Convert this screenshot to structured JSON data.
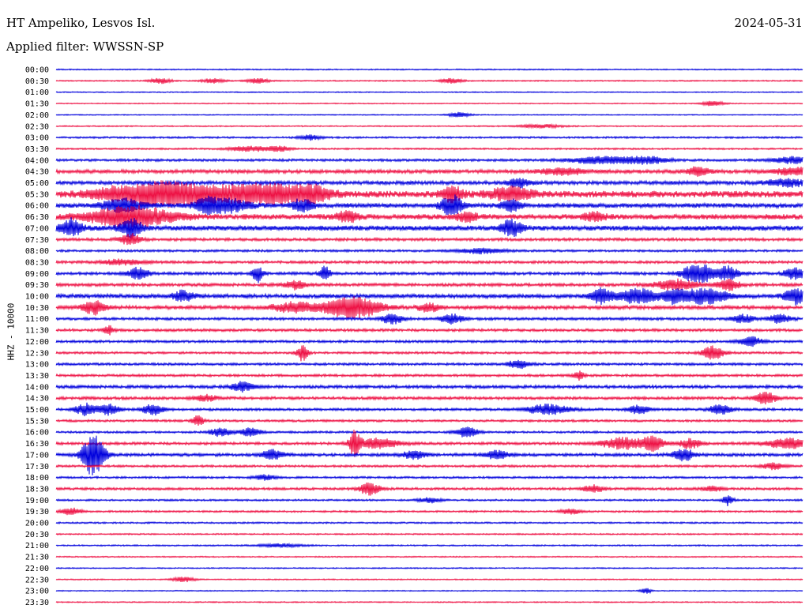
{
  "header": {
    "station": "HT Ampeliko, Lesvos Isl.",
    "date": "2024-05-31",
    "filter": "Applied filter: WWSSN-SP"
  },
  "chart_data": {
    "type": "line",
    "ylabel": "HHZ - 10000",
    "row_labels": [
      "00:00",
      "00:30",
      "01:00",
      "01:30",
      "02:00",
      "02:30",
      "03:00",
      "03:30",
      "04:00",
      "04:30",
      "05:00",
      "05:30",
      "06:00",
      "06:30",
      "07:00",
      "07:30",
      "08:00",
      "08:30",
      "09:00",
      "09:30",
      "10:00",
      "10:30",
      "11:00",
      "11:30",
      "12:00",
      "12:30",
      "13:00",
      "13:30",
      "14:00",
      "14:30",
      "15:00",
      "15:30",
      "16:00",
      "16:30",
      "17:00",
      "17:30",
      "18:00",
      "18:30",
      "19:00",
      "19:30",
      "20:00",
      "20:30",
      "21:00",
      "21:30",
      "22:00",
      "22:30",
      "23:00",
      "23:30"
    ],
    "series_colors": [
      "#0000dd",
      "#ee1144"
    ],
    "noise_levels": [
      0.6,
      0.6,
      0.5,
      0.5,
      0.5,
      0.6,
      0.9,
      0.8,
      1.2,
      1.8,
      1.8,
      3.2,
      2.2,
      2.6,
      2.4,
      1.4,
      1.1,
      1.3,
      1.4,
      1.5,
      2.0,
      1.8,
      1.3,
      1.3,
      1.2,
      1.1,
      1.2,
      1.2,
      1.5,
      1.4,
      1.2,
      1.1,
      1.0,
      1.3,
      1.5,
      1.1,
      1.0,
      1.2,
      0.9,
      0.9,
      0.8,
      0.7,
      0.7,
      0.6,
      0.6,
      0.6,
      0.5,
      0.6
    ],
    "events": [
      [],
      [
        [
          0.14,
          3,
          0.01
        ],
        [
          0.21,
          3,
          0.01
        ],
        [
          0.27,
          3,
          0.01
        ],
        [
          0.53,
          3,
          0.01
        ]
      ],
      [],
      [
        [
          0.88,
          3,
          0.01
        ]
      ],
      [
        [
          0.54,
          3,
          0.01
        ]
      ],
      [
        [
          0.65,
          2,
          0.02
        ]
      ],
      [
        [
          0.34,
          3,
          0.01
        ]
      ],
      [
        [
          0.26,
          3,
          0.02
        ],
        [
          0.3,
          3,
          0.01
        ]
      ],
      [
        [
          0.73,
          4,
          0.03
        ],
        [
          0.79,
          4,
          0.02
        ],
        [
          0.99,
          4,
          0.02
        ]
      ],
      [
        [
          0.68,
          4,
          0.02
        ],
        [
          0.86,
          5,
          0.01
        ],
        [
          0.99,
          4,
          0.02
        ]
      ],
      [
        [
          0.62,
          5,
          0.01
        ],
        [
          0.98,
          4,
          0.02
        ]
      ],
      [
        [
          0.09,
          8,
          0.03
        ],
        [
          0.14,
          12,
          0.02
        ],
        [
          0.18,
          9,
          0.02
        ],
        [
          0.24,
          9,
          0.03
        ],
        [
          0.29,
          9,
          0.02
        ],
        [
          0.34,
          10,
          0.02
        ],
        [
          0.53,
          8,
          0.01
        ],
        [
          0.61,
          7,
          0.02
        ]
      ],
      [
        [
          0.09,
          8,
          0.02
        ],
        [
          0.2,
          8,
          0.01
        ],
        [
          0.23,
          8,
          0.02
        ],
        [
          0.33,
          7,
          0.01
        ],
        [
          0.53,
          12,
          0.01
        ],
        [
          0.61,
          6,
          0.01
        ]
      ],
      [
        [
          0.1,
          12,
          0.04
        ],
        [
          0.39,
          6,
          0.01
        ],
        [
          0.55,
          5,
          0.01
        ],
        [
          0.72,
          5,
          0.01
        ]
      ],
      [
        [
          0.02,
          10,
          0.01
        ],
        [
          0.1,
          12,
          0.01
        ],
        [
          0.61,
          9,
          0.01
        ]
      ],
      [
        [
          0.1,
          6,
          0.01
        ]
      ],
      [
        [
          0.57,
          3,
          0.02
        ]
      ],
      [
        [
          0.09,
          3,
          0.02
        ]
      ],
      [
        [
          0.11,
          7,
          0.01
        ],
        [
          0.27,
          10,
          0.005
        ],
        [
          0.36,
          8,
          0.005
        ],
        [
          0.85,
          8,
          0.01
        ],
        [
          0.87,
          9,
          0.01
        ],
        [
          0.9,
          8,
          0.01
        ],
        [
          0.99,
          7,
          0.01
        ]
      ],
      [
        [
          0.32,
          5,
          0.01
        ],
        [
          0.83,
          6,
          0.02
        ],
        [
          0.9,
          7,
          0.01
        ]
      ],
      [
        [
          0.17,
          6,
          0.01
        ],
        [
          0.73,
          8,
          0.01
        ],
        [
          0.78,
          8,
          0.02
        ],
        [
          0.83,
          8,
          0.01
        ],
        [
          0.87,
          9,
          0.02
        ],
        [
          0.99,
          9,
          0.01
        ]
      ],
      [
        [
          0.05,
          8,
          0.01
        ],
        [
          0.32,
          6,
          0.02
        ],
        [
          0.38,
          8,
          0.02
        ],
        [
          0.41,
          9,
          0.02
        ],
        [
          0.5,
          5,
          0.01
        ]
      ],
      [
        [
          0.45,
          6,
          0.01
        ],
        [
          0.53,
          6,
          0.01
        ],
        [
          0.92,
          5,
          0.01
        ],
        [
          0.97,
          5,
          0.01
        ]
      ],
      [
        [
          0.07,
          5,
          0.005
        ]
      ],
      [
        [
          0.93,
          6,
          0.01
        ]
      ],
      [
        [
          0.33,
          10,
          0.005
        ],
        [
          0.88,
          8,
          0.01
        ]
      ],
      [
        [
          0.62,
          5,
          0.01
        ]
      ],
      [
        [
          0.7,
          5,
          0.005
        ]
      ],
      [
        [
          0.25,
          6,
          0.01
        ]
      ],
      [
        [
          0.2,
          4,
          0.01
        ],
        [
          0.95,
          7,
          0.01
        ]
      ],
      [
        [
          0.04,
          7,
          0.01
        ],
        [
          0.07,
          6,
          0.01
        ],
        [
          0.13,
          6,
          0.01
        ],
        [
          0.66,
          6,
          0.02
        ],
        [
          0.78,
          5,
          0.01
        ],
        [
          0.89,
          6,
          0.01
        ]
      ],
      [
        [
          0.19,
          7,
          0.005
        ]
      ],
      [
        [
          0.22,
          5,
          0.01
        ],
        [
          0.26,
          5,
          0.01
        ],
        [
          0.55,
          6,
          0.01
        ]
      ],
      [
        [
          0.4,
          14,
          0.005
        ],
        [
          0.43,
          6,
          0.02
        ],
        [
          0.76,
          7,
          0.02
        ],
        [
          0.8,
          8,
          0.01
        ],
        [
          0.85,
          6,
          0.01
        ],
        [
          0.98,
          6,
          0.02
        ]
      ],
      [
        [
          0.05,
          26,
          0.01
        ],
        [
          0.29,
          6,
          0.01
        ],
        [
          0.48,
          5,
          0.01
        ],
        [
          0.59,
          5,
          0.01
        ],
        [
          0.84,
          7,
          0.01
        ]
      ],
      [
        [
          0.96,
          4,
          0.01
        ]
      ],
      [
        [
          0.28,
          3,
          0.01
        ]
      ],
      [
        [
          0.42,
          7,
          0.01
        ],
        [
          0.72,
          4,
          0.01
        ],
        [
          0.88,
          3,
          0.01
        ]
      ],
      [
        [
          0.5,
          3,
          0.01
        ],
        [
          0.9,
          6,
          0.005
        ]
      ],
      [
        [
          0.02,
          4,
          0.01
        ],
        [
          0.69,
          3,
          0.01
        ]
      ],
      [],
      [],
      [
        [
          0.3,
          2,
          0.02
        ]
      ],
      [],
      [],
      [
        [
          0.17,
          3,
          0.01
        ]
      ],
      [
        [
          0.79,
          3,
          0.005
        ]
      ],
      []
    ]
  }
}
